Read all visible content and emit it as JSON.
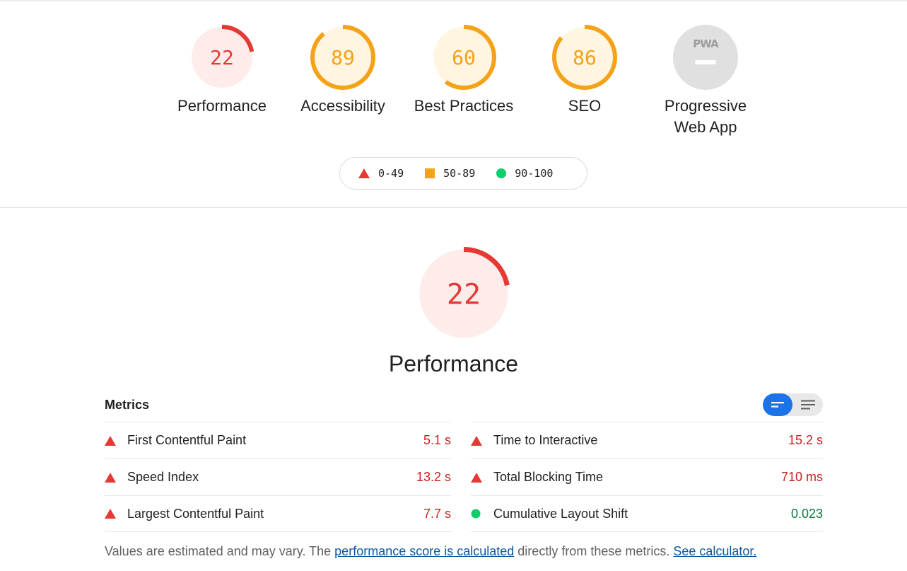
{
  "colors": {
    "fail": "#e53935",
    "fail_bg": "#fdecea",
    "average": "#f4a21a",
    "average_bg": "#fff5e1",
    "pass": "#0cce6b",
    "pwa_bg": "#e0e0e0",
    "value_fail": "#c5221f",
    "value_pass": "#0d7a38"
  },
  "gauges": [
    {
      "name": "Performance",
      "score": "22",
      "level": 0.22,
      "rating": "fail"
    },
    {
      "name": "Accessibility",
      "score": "89",
      "level": 0.89,
      "rating": "average"
    },
    {
      "name": "Best Practices",
      "score": "60",
      "level": 0.6,
      "rating": "average"
    },
    {
      "name": "SEO",
      "score": "86",
      "level": 0.86,
      "rating": "average"
    },
    {
      "name": "Progressive\nWeb App",
      "score": "PWA",
      "rating": "pwa"
    }
  ],
  "legend": [
    {
      "range": "0-49",
      "icon": "triangle-icon",
      "rating": "fail"
    },
    {
      "range": "50-89",
      "icon": "square-icon",
      "rating": "average"
    },
    {
      "range": "90-100",
      "icon": "circle-icon",
      "rating": "pass"
    }
  ],
  "main_gauge": {
    "score": "22",
    "level": 0.22,
    "title": "Performance"
  },
  "metrics": {
    "title": "Metrics",
    "left": [
      {
        "label": "First Contentful Paint",
        "value": "5.1 s",
        "rating": "fail"
      },
      {
        "label": "Speed Index",
        "value": "13.2 s",
        "rating": "fail"
      },
      {
        "label": "Largest Contentful Paint",
        "value": "7.7 s",
        "rating": "fail"
      }
    ],
    "right": [
      {
        "label": "Time to Interactive",
        "value": "15.2 s",
        "rating": "fail"
      },
      {
        "label": "Total Blocking Time",
        "value": "710 ms",
        "rating": "fail"
      },
      {
        "label": "Cumulative Layout Shift",
        "value": "0.023",
        "rating": "pass"
      }
    ]
  },
  "footnote": {
    "prefix": "Values are estimated and may vary. The ",
    "link1": "performance score is calculated",
    "middle": " directly from these metrics. ",
    "link2": "See calculator."
  }
}
